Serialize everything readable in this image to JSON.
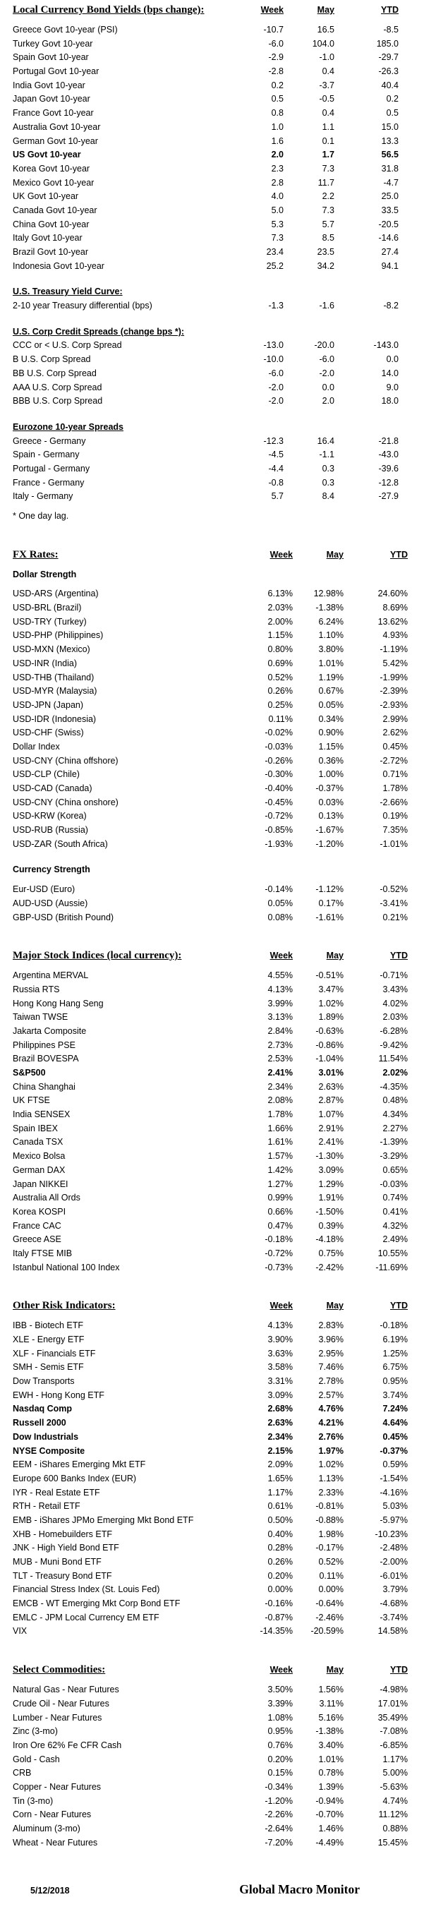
{
  "columns": [
    "Week",
    "May",
    "YTD"
  ],
  "footer": {
    "date": "5/12/2018",
    "brand": "Global Macro Monitor"
  },
  "sections": [
    {
      "id": "bond-yields",
      "style": "main",
      "cols": true,
      "unit": "bps",
      "gap": "none",
      "title": "Local Currency Bond Yields (bps change):",
      "rows": [
        {
          "label": "Greece Govt 10-year (PSI)",
          "week": "-10.7",
          "may": "16.5",
          "ytd": "-8.5"
        },
        {
          "label": "Turkey Govt 10-year",
          "week": "-6.0",
          "may": "104.0",
          "ytd": "185.0"
        },
        {
          "label": "Spain Govt 10-year",
          "week": "-2.9",
          "may": "-1.0",
          "ytd": "-29.7"
        },
        {
          "label": "Portugal Govt 10-year",
          "week": "-2.8",
          "may": "0.4",
          "ytd": "-26.3"
        },
        {
          "label": "India Govt 10-year",
          "week": "0.2",
          "may": "-3.7",
          "ytd": "40.4"
        },
        {
          "label": "Japan Govt 10-year",
          "week": "0.5",
          "may": "-0.5",
          "ytd": "0.2"
        },
        {
          "label": "France Govt 10-year",
          "week": "0.8",
          "may": "0.4",
          "ytd": "0.5"
        },
        {
          "label": "Australia Govt 10-year",
          "week": "1.0",
          "may": "1.1",
          "ytd": "15.0"
        },
        {
          "label": "German Govt 10-year",
          "week": "1.6",
          "may": "0.1",
          "ytd": "13.3"
        },
        {
          "label": "US Govt 10-year",
          "week": "2.0",
          "may": "1.7",
          "ytd": "56.5",
          "bold": true
        },
        {
          "label": "Korea Govt 10-year",
          "week": "2.3",
          "may": "7.3",
          "ytd": "31.8"
        },
        {
          "label": "Mexico Govt 10-year",
          "week": "2.8",
          "may": "11.7",
          "ytd": "-4.7"
        },
        {
          "label": "UK Govt 10-year",
          "week": "4.0",
          "may": "2.2",
          "ytd": "25.0"
        },
        {
          "label": "Canada Govt 10-year",
          "week": "5.0",
          "may": "7.3",
          "ytd": "33.5"
        },
        {
          "label": "China Govt 10-year",
          "week": "5.3",
          "may": "5.7",
          "ytd": "-20.5"
        },
        {
          "label": "Italy Govt 10-year",
          "week": "7.3",
          "may": "8.5",
          "ytd": "-14.6"
        },
        {
          "label": "Brazil Govt 10-year",
          "week": "23.4",
          "may": "23.5",
          "ytd": "27.4"
        },
        {
          "label": "Indonesia Govt 10-year",
          "week": "25.2",
          "may": "34.2",
          "ytd": "94.1"
        }
      ]
    },
    {
      "id": "treasury-curve",
      "style": "sub",
      "cols": false,
      "unit": "bps",
      "gap": "sm",
      "title": "U.S. Treasury Yield Curve:",
      "rows": [
        {
          "label": "2-10 year Treasury differential (bps)",
          "week": "-1.3",
          "may": "-1.6",
          "ytd": "-8.2"
        }
      ]
    },
    {
      "id": "corp-credit-spreads",
      "style": "sub",
      "cols": false,
      "unit": "bps",
      "gap": "sm",
      "title": "U.S. Corp Credit Spreads (change bps *):",
      "rows": [
        {
          "label": "CCC or < U.S. Corp Spread",
          "week": "-13.0",
          "may": "-20.0",
          "ytd": "-143.0"
        },
        {
          "label": "B U.S. Corp Spread",
          "week": "-10.0",
          "may": "-6.0",
          "ytd": "0.0"
        },
        {
          "label": "BB U.S. Corp Spread",
          "week": "-6.0",
          "may": "-2.0",
          "ytd": "14.0"
        },
        {
          "label": "AAA U.S. Corp Spread",
          "week": "-2.0",
          "may": "0.0",
          "ytd": "9.0"
        },
        {
          "label": "BBB U.S. Corp Spread",
          "week": "-2.0",
          "may": "2.0",
          "ytd": "18.0"
        }
      ]
    },
    {
      "id": "eurozone-spreads",
      "style": "sub",
      "cols": false,
      "unit": "bps",
      "gap": "sm",
      "title": "Eurozone 10-year Spreads",
      "note": "* One day lag.",
      "rows": [
        {
          "label": "Greece - Germany",
          "week": "-12.3",
          "may": "16.4",
          "ytd": "-21.8"
        },
        {
          "label": "Spain - Germany",
          "week": "-4.5",
          "may": "-1.1",
          "ytd": "-43.0"
        },
        {
          "label": "Portugal - Germany",
          "week": "-4.4",
          "may": "0.3",
          "ytd": "-39.6"
        },
        {
          "label": "France - Germany",
          "week": "-0.8",
          "may": "0.3",
          "ytd": "-12.8"
        },
        {
          "label": "Italy - Germany",
          "week": "5.7",
          "may": "8.4",
          "ytd": "-27.9"
        }
      ]
    },
    {
      "id": "fx-rates",
      "style": "main",
      "cols": true,
      "unit": "pct",
      "gap": "lg",
      "title": "FX Rates:",
      "rows": []
    },
    {
      "id": "dollar-strength",
      "style": "plainsub",
      "cols": false,
      "unit": "pct",
      "gap": "sm2",
      "title": "Dollar Strength",
      "rows": [
        {
          "label": "USD-ARS (Argentina)",
          "week": "6.13%",
          "may": "12.98%",
          "ytd": "24.60%"
        },
        {
          "label": "USD-BRL (Brazil)",
          "week": "2.03%",
          "may": "-1.38%",
          "ytd": "8.69%"
        },
        {
          "label": "USD-TRY (Turkey)",
          "week": "2.00%",
          "may": "6.24%",
          "ytd": "13.62%"
        },
        {
          "label": "USD-PHP (Philippines)",
          "week": "1.15%",
          "may": "1.10%",
          "ytd": "4.93%"
        },
        {
          "label": "USD-MXN  (Mexico)",
          "week": "0.80%",
          "may": "3.80%",
          "ytd": "-1.19%"
        },
        {
          "label": "USD-INR (India)",
          "week": "0.69%",
          "may": "1.01%",
          "ytd": "5.42%"
        },
        {
          "label": "USD-THB  (Thailand)",
          "week": "0.52%",
          "may": "1.19%",
          "ytd": "-1.99%"
        },
        {
          "label": "USD-MYR (Malaysia)",
          "week": "0.26%",
          "may": "0.67%",
          "ytd": "-2.39%"
        },
        {
          "label": "USD-JPN (Japan)",
          "week": "0.25%",
          "may": "0.05%",
          "ytd": "-2.93%"
        },
        {
          "label": "USD-IDR (Indonesia)",
          "week": "0.11%",
          "may": "0.34%",
          "ytd": "2.99%"
        },
        {
          "label": "USD-CHF (Swiss)",
          "week": "-0.02%",
          "may": "0.90%",
          "ytd": "2.62%"
        },
        {
          "label": "Dollar Index",
          "week": "-0.03%",
          "may": "1.15%",
          "ytd": "0.45%"
        },
        {
          "label": "USD-CNY (China offshore)",
          "week": "-0.26%",
          "may": "0.36%",
          "ytd": "-2.72%"
        },
        {
          "label": "USD-CLP (Chile)",
          "week": "-0.30%",
          "may": "1.00%",
          "ytd": "0.71%"
        },
        {
          "label": "USD-CAD (Canada)",
          "week": "-0.40%",
          "may": "-0.37%",
          "ytd": "1.78%"
        },
        {
          "label": "USD-CNY (China onshore)",
          "week": "-0.45%",
          "may": "0.03%",
          "ytd": "-2.66%"
        },
        {
          "label": "USD-KRW (Korea)",
          "week": "-0.72%",
          "may": "0.13%",
          "ytd": "0.19%"
        },
        {
          "label": "USD-RUB (Russia)",
          "week": "-0.85%",
          "may": "-1.67%",
          "ytd": "7.35%"
        },
        {
          "label": "USD-ZAR (South Africa)",
          "week": "-1.93%",
          "may": "-1.20%",
          "ytd": "-1.01%"
        }
      ]
    },
    {
      "id": "currency-strength",
      "style": "plainsub",
      "cols": false,
      "unit": "pct",
      "gap": "sm",
      "title": "Currency Strength",
      "rows": [
        {
          "label": "Eur-USD (Euro)",
          "week": "-0.14%",
          "may": "-1.12%",
          "ytd": "-0.52%"
        },
        {
          "label": "AUD-USD (Aussie)",
          "week": "0.05%",
          "may": "0.17%",
          "ytd": "-3.41%"
        },
        {
          "label": "GBP-USD (British Pound)",
          "week": "0.08%",
          "may": "-1.61%",
          "ytd": "0.21%"
        }
      ]
    },
    {
      "id": "stock-indices",
      "style": "main",
      "cols": true,
      "unit": "pct",
      "gap": "lg",
      "title": "Major Stock Indices (local currency):",
      "rows": [
        {
          "label": "Argentina MERVAL",
          "week": "4.55%",
          "may": "-0.51%",
          "ytd": "-0.71%"
        },
        {
          "label": "Russia RTS",
          "week": "4.13%",
          "may": "3.47%",
          "ytd": "3.43%"
        },
        {
          "label": "Hong Kong Hang Seng",
          "week": "3.99%",
          "may": "1.02%",
          "ytd": "4.02%"
        },
        {
          "label": "Taiwan  TWSE",
          "week": "3.13%",
          "may": "1.89%",
          "ytd": "2.03%"
        },
        {
          "label": "Jakarta Composite",
          "week": "2.84%",
          "may": "-0.63%",
          "ytd": "-6.28%"
        },
        {
          "label": "Philippines PSE",
          "week": "2.73%",
          "may": "-0.86%",
          "ytd": "-9.42%"
        },
        {
          "label": "Brazil BOVESPA",
          "week": "2.53%",
          "may": "-1.04%",
          "ytd": "11.54%"
        },
        {
          "label": "S&P500",
          "week": "2.41%",
          "may": "3.01%",
          "ytd": "2.02%",
          "bold": true
        },
        {
          "label": "China Shanghai",
          "week": "2.34%",
          "may": "2.63%",
          "ytd": "-4.35%"
        },
        {
          "label": "UK FTSE",
          "week": "2.08%",
          "may": "2.87%",
          "ytd": "0.48%"
        },
        {
          "label": "India SENSEX",
          "week": "1.78%",
          "may": "1.07%",
          "ytd": "4.34%"
        },
        {
          "label": "Spain IBEX",
          "week": "1.66%",
          "may": "2.91%",
          "ytd": "2.27%"
        },
        {
          "label": "Canada TSX",
          "week": "1.61%",
          "may": "2.41%",
          "ytd": "-1.39%"
        },
        {
          "label": "Mexico Bolsa",
          "week": "1.57%",
          "may": "-1.30%",
          "ytd": "-3.29%"
        },
        {
          "label": "German DAX",
          "week": "1.42%",
          "may": "3.09%",
          "ytd": "0.65%"
        },
        {
          "label": "Japan NIKKEI",
          "week": "1.27%",
          "may": "1.29%",
          "ytd": "-0.03%"
        },
        {
          "label": "Australia All Ords",
          "week": "0.99%",
          "may": "1.91%",
          "ytd": "0.74%"
        },
        {
          "label": "Korea KOSPI",
          "week": "0.66%",
          "may": "-1.50%",
          "ytd": "0.41%"
        },
        {
          "label": "France CAC",
          "week": "0.47%",
          "may": "0.39%",
          "ytd": "4.32%"
        },
        {
          "label": "Greece ASE",
          "week": "-0.18%",
          "may": "-4.18%",
          "ytd": "2.49%"
        },
        {
          "label": "Italy FTSE MIB",
          "week": "-0.72%",
          "may": "0.75%",
          "ytd": "10.55%"
        },
        {
          "label": "Istanbul National 100 Index",
          "week": "-0.73%",
          "may": "-2.42%",
          "ytd": "-11.69%"
        }
      ]
    },
    {
      "id": "risk-indicators",
      "style": "main",
      "cols": true,
      "unit": "pct",
      "gap": "lg",
      "title": "Other Risk Indicators:",
      "rows": [
        {
          "label": "IBB - Biotech ETF",
          "week": "4.13%",
          "may": "2.83%",
          "ytd": "-0.18%"
        },
        {
          "label": "XLE - Energy ETF",
          "week": "3.90%",
          "may": "3.96%",
          "ytd": "6.19%"
        },
        {
          "label": "XLF - Financials ETF",
          "week": "3.63%",
          "may": "2.95%",
          "ytd": "1.25%"
        },
        {
          "label": "SMH - Semis ETF",
          "week": "3.58%",
          "may": "7.46%",
          "ytd": "6.75%"
        },
        {
          "label": "Dow Transports",
          "week": "3.31%",
          "may": "2.78%",
          "ytd": "0.95%"
        },
        {
          "label": "EWH - Hong Kong ETF",
          "week": "3.09%",
          "may": "2.57%",
          "ytd": "3.74%"
        },
        {
          "label": "Nasdaq Comp",
          "week": "2.68%",
          "may": "4.76%",
          "ytd": "7.24%",
          "bold": true
        },
        {
          "label": "Russell 2000",
          "week": "2.63%",
          "may": "4.21%",
          "ytd": "4.64%",
          "bold": true
        },
        {
          "label": "Dow Industrials",
          "week": "2.34%",
          "may": "2.76%",
          "ytd": "0.45%",
          "bold": true
        },
        {
          "label": "NYSE Composite",
          "week": "2.15%",
          "may": "1.97%",
          "ytd": "-0.37%",
          "bold": true
        },
        {
          "label": "EEM - iShares Emerging Mkt ETF",
          "week": "2.09%",
          "may": "1.02%",
          "ytd": "0.59%"
        },
        {
          "label": "Europe 600 Banks Index (EUR)",
          "week": "1.65%",
          "may": "1.13%",
          "ytd": "-1.54%"
        },
        {
          "label": "IYR - Real Estate ETF",
          "week": "1.17%",
          "may": "2.33%",
          "ytd": "-4.16%"
        },
        {
          "label": "RTH - Retail ETF",
          "week": "0.61%",
          "may": "-0.81%",
          "ytd": "5.03%"
        },
        {
          "label": "EMB - iShares JPMo Emerging Mkt Bond ETF",
          "week": "0.50%",
          "may": "-0.88%",
          "ytd": "-5.97%"
        },
        {
          "label": "XHB - Homebuilders ETF",
          "week": "0.40%",
          "may": "1.98%",
          "ytd": "-10.23%"
        },
        {
          "label": "JNK - High Yield Bond ETF",
          "week": "0.28%",
          "may": "-0.17%",
          "ytd": "-2.48%"
        },
        {
          "label": "MUB - Muni Bond ETF",
          "week": "0.26%",
          "may": "0.52%",
          "ytd": "-2.00%"
        },
        {
          "label": "TLT - Treasury Bond ETF",
          "week": "0.20%",
          "may": "0.11%",
          "ytd": "-6.01%"
        },
        {
          "label": "Financial Stress Index (St. Louis Fed)",
          "week": "0.00%",
          "may": "0.00%",
          "ytd": "3.79%"
        },
        {
          "label": "EMCB - WT Emerging Mkt Corp Bond ETF",
          "week": "-0.16%",
          "may": "-0.64%",
          "ytd": "-4.68%"
        },
        {
          "label": "EMLC - JPM Local Currency EM ETF",
          "week": "-0.87%",
          "may": "-2.46%",
          "ytd": "-3.74%"
        },
        {
          "label": "VIX",
          "week": "-14.35%",
          "may": "-20.59%",
          "ytd": "14.58%"
        }
      ]
    },
    {
      "id": "commodities",
      "style": "main",
      "cols": true,
      "unit": "pct",
      "gap": "lg",
      "title": "Select Commodities:",
      "rows": [
        {
          "label": "Natural Gas - Near Futures",
          "week": "3.50%",
          "may": "1.56%",
          "ytd": "-4.98%"
        },
        {
          "label": "Crude Oil - Near Futures",
          "week": "3.39%",
          "may": "3.11%",
          "ytd": "17.01%"
        },
        {
          "label": "Lumber - Near Futures",
          "week": "1.08%",
          "may": "5.16%",
          "ytd": "35.49%"
        },
        {
          "label": "Zinc (3-mo)",
          "week": "0.95%",
          "may": "-1.38%",
          "ytd": "-7.08%"
        },
        {
          "label": "Iron Ore 62% Fe CFR Cash",
          "week": "0.76%",
          "may": "3.40%",
          "ytd": "-6.85%"
        },
        {
          "label": "Gold - Cash",
          "week": "0.20%",
          "may": "1.01%",
          "ytd": "1.17%"
        },
        {
          "label": "CRB",
          "week": "0.15%",
          "may": "0.78%",
          "ytd": "5.00%"
        },
        {
          "label": "Copper - Near Futures",
          "week": "-0.34%",
          "may": "1.39%",
          "ytd": "-5.63%"
        },
        {
          "label": "Tin (3-mo)",
          "week": "-1.20%",
          "may": "-0.94%",
          "ytd": "4.74%"
        },
        {
          "label": "Corn - Near Futures",
          "week": "-2.26%",
          "may": "-0.70%",
          "ytd": "11.12%"
        },
        {
          "label": "Aluminum (3-mo)",
          "week": "-2.64%",
          "may": "1.46%",
          "ytd": "0.88%"
        },
        {
          "label": "Wheat - Near Futures",
          "week": "-7.20%",
          "may": "-4.49%",
          "ytd": "15.45%"
        }
      ]
    }
  ]
}
